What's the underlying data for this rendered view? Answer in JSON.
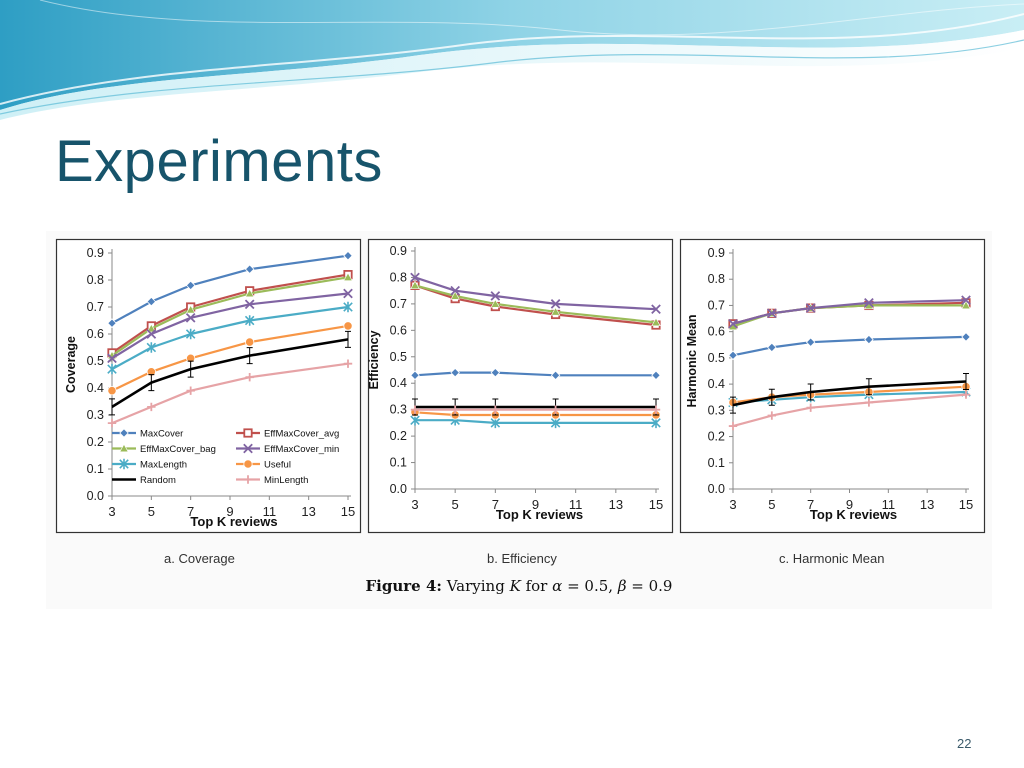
{
  "slide": {
    "title": "Experiments",
    "slide_number": "22",
    "captions": [
      "a. Coverage",
      "b. Efficiency",
      "c. Harmonic Mean"
    ],
    "figure_caption": {
      "prefix": "Figure 4:",
      "text1": "Varying",
      "k": "K",
      "text2": "for",
      "alpha": "α",
      "alpha_eq": "= 0.5,",
      "beta": "β",
      "beta_eq": "= 0.9"
    },
    "accent_color": "#17546b"
  },
  "chart_data": [
    {
      "type": "line",
      "title": "",
      "xlabel": "Top K reviews",
      "ylabel": "Coverage",
      "x_ticks": [
        3,
        5,
        7,
        9,
        11,
        13,
        15
      ],
      "x_range": [
        3,
        15
      ],
      "y_ticks": [
        0.0,
        0.1,
        0.2,
        0.3,
        0.4,
        0.5,
        0.6,
        0.7,
        0.8,
        0.9
      ],
      "y_tick_labels": [
        "0.0",
        "0.1",
        "0.2",
        "0.3",
        "0.4",
        "0.5",
        "0.6",
        "0.7",
        "0.8",
        "0.9"
      ],
      "y_range": [
        0,
        0.9
      ],
      "grid": false,
      "legend": "bottom-inside",
      "x": [
        3,
        5,
        7,
        10,
        15
      ],
      "series": [
        {
          "name": "MaxCover",
          "color": "#4f81bd",
          "marker": "diamond",
          "values": [
            0.64,
            0.72,
            0.78,
            0.84,
            0.89
          ]
        },
        {
          "name": "EffMaxCover_avg",
          "color": "#c0504d",
          "marker": "square",
          "values": [
            0.53,
            0.63,
            0.7,
            0.76,
            0.82
          ]
        },
        {
          "name": "EffMaxCover_bag",
          "color": "#9bbb59",
          "marker": "triangle",
          "values": [
            0.52,
            0.62,
            0.69,
            0.75,
            0.81
          ]
        },
        {
          "name": "EffMaxCover_min",
          "color": "#8064a2",
          "marker": "x",
          "values": [
            0.51,
            0.6,
            0.66,
            0.71,
            0.75
          ]
        },
        {
          "name": "MaxLength",
          "color": "#4bacc6",
          "marker": "star",
          "values": [
            0.47,
            0.55,
            0.6,
            0.65,
            0.7
          ]
        },
        {
          "name": "Useful",
          "color": "#f79646",
          "marker": "circle",
          "values": [
            0.39,
            0.46,
            0.51,
            0.57,
            0.63
          ]
        },
        {
          "name": "Random",
          "color": "#000000",
          "marker": "none",
          "values": [
            0.33,
            0.42,
            0.47,
            0.52,
            0.58
          ]
        },
        {
          "name": "MinLength",
          "color": "#e6a3a6",
          "marker": "plus",
          "values": [
            0.27,
            0.33,
            0.39,
            0.44,
            0.49
          ]
        }
      ]
    },
    {
      "type": "line",
      "title": "",
      "xlabel": "Top K reviews",
      "ylabel": "Efficiency",
      "x_ticks": [
        3,
        5,
        7,
        9,
        11,
        13,
        15
      ],
      "x_range": [
        3,
        15
      ],
      "y_ticks": [
        0.0,
        0.1,
        0.2,
        0.3,
        0.4,
        0.5,
        0.6,
        0.7,
        0.8,
        0.9
      ],
      "y_tick_labels": [
        "0.0",
        "0.1",
        "0.2",
        "0.3",
        "0.4",
        "0.5",
        "0.6",
        "0.7",
        "0.8",
        "0.9"
      ],
      "y_range": [
        0,
        0.9
      ],
      "grid": false,
      "legend": "none",
      "x": [
        3,
        5,
        7,
        10,
        15
      ],
      "series": [
        {
          "name": "MaxCover",
          "color": "#4f81bd",
          "marker": "diamond",
          "values": [
            0.43,
            0.44,
            0.44,
            0.43,
            0.43
          ]
        },
        {
          "name": "EffMaxCover_avg",
          "color": "#c0504d",
          "marker": "square",
          "values": [
            0.77,
            0.72,
            0.69,
            0.66,
            0.62
          ]
        },
        {
          "name": "EffMaxCover_bag",
          "color": "#9bbb59",
          "marker": "triangle",
          "values": [
            0.77,
            0.73,
            0.7,
            0.67,
            0.63
          ]
        },
        {
          "name": "EffMaxCover_min",
          "color": "#8064a2",
          "marker": "x",
          "values": [
            0.8,
            0.75,
            0.73,
            0.7,
            0.68
          ]
        },
        {
          "name": "MaxLength",
          "color": "#4bacc6",
          "marker": "star",
          "values": [
            0.26,
            0.26,
            0.25,
            0.25,
            0.25
          ]
        },
        {
          "name": "Useful",
          "color": "#f79646",
          "marker": "circle",
          "values": [
            0.29,
            0.28,
            0.28,
            0.28,
            0.28
          ]
        },
        {
          "name": "Random",
          "color": "#000000",
          "marker": "none",
          "values": [
            0.31,
            0.31,
            0.31,
            0.31,
            0.31
          ]
        },
        {
          "name": "MinLength",
          "color": "#e6a3a6",
          "marker": "plus",
          "values": [
            0.3,
            0.3,
            0.3,
            0.3,
            0.3
          ]
        }
      ]
    },
    {
      "type": "line",
      "title": "",
      "xlabel": "Top K reviews",
      "ylabel": "Harmonic Mean",
      "x_ticks": [
        3,
        5,
        7,
        9,
        11,
        13,
        15
      ],
      "x_range": [
        3,
        15
      ],
      "y_ticks": [
        0.0,
        0.1,
        0.2,
        0.3,
        0.4,
        0.5,
        0.6,
        0.7,
        0.8,
        0.9
      ],
      "y_tick_labels": [
        "0.0",
        "0.1",
        "0.2",
        "0.3",
        "0.4",
        "0.5",
        "0.6",
        "0.7",
        "0.8",
        "0.9"
      ],
      "y_range": [
        0,
        0.9
      ],
      "grid": false,
      "legend": "none",
      "x": [
        3,
        5,
        7,
        10,
        15
      ],
      "series": [
        {
          "name": "MaxCover",
          "color": "#4f81bd",
          "marker": "diamond",
          "values": [
            0.51,
            0.54,
            0.56,
            0.57,
            0.58
          ]
        },
        {
          "name": "EffMaxCover_avg",
          "color": "#c0504d",
          "marker": "square",
          "values": [
            0.63,
            0.67,
            0.69,
            0.7,
            0.71
          ]
        },
        {
          "name": "EffMaxCover_bag",
          "color": "#9bbb59",
          "marker": "triangle",
          "values": [
            0.62,
            0.67,
            0.69,
            0.7,
            0.7
          ]
        },
        {
          "name": "EffMaxCover_min",
          "color": "#8064a2",
          "marker": "x",
          "values": [
            0.63,
            0.67,
            0.69,
            0.71,
            0.72
          ]
        },
        {
          "name": "MaxLength",
          "color": "#4bacc6",
          "marker": "star",
          "values": [
            0.33,
            0.34,
            0.35,
            0.36,
            0.37
          ]
        },
        {
          "name": "Useful",
          "color": "#f79646",
          "marker": "circle",
          "values": [
            0.33,
            0.35,
            0.36,
            0.37,
            0.39
          ]
        },
        {
          "name": "Random",
          "color": "#000000",
          "marker": "none",
          "values": [
            0.32,
            0.35,
            0.37,
            0.39,
            0.41
          ]
        },
        {
          "name": "MinLength",
          "color": "#e6a3a6",
          "marker": "plus",
          "values": [
            0.24,
            0.28,
            0.31,
            0.33,
            0.36
          ]
        }
      ]
    }
  ]
}
